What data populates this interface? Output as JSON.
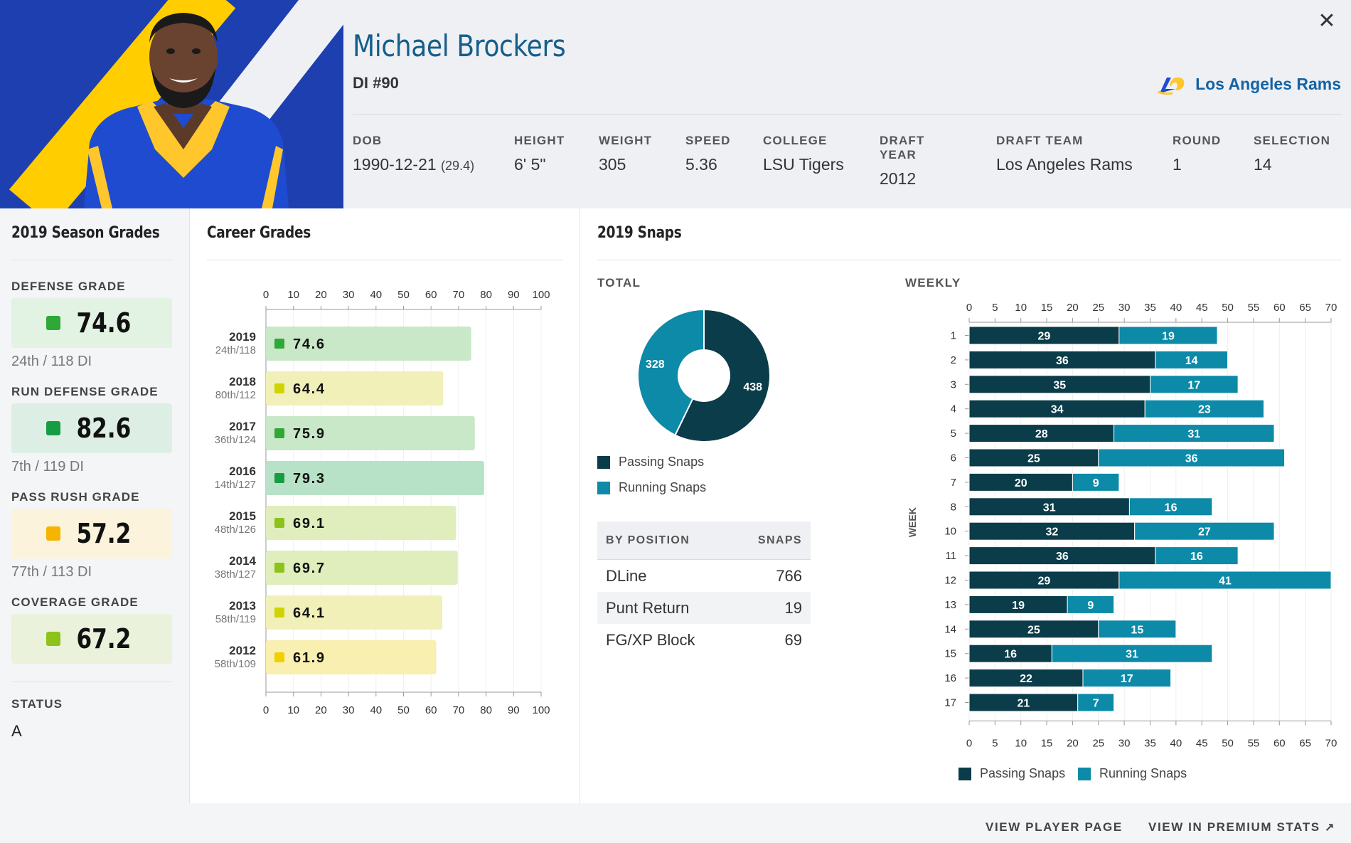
{
  "player": {
    "name": "Michael Brockers",
    "position": "DI #90",
    "team": "Los Angeles Rams"
  },
  "bio": [
    {
      "label": "DOB",
      "value": "1990-12-21",
      "extra": "(29.4)"
    },
    {
      "label": "HEIGHT",
      "value": "6' 5\""
    },
    {
      "label": "WEIGHT",
      "value": "305"
    },
    {
      "label": "SPEED",
      "value": "5.36"
    },
    {
      "label": "COLLEGE",
      "value": "LSU Tigers"
    },
    {
      "label": "DRAFT YEAR",
      "value": "2012"
    },
    {
      "label": "DRAFT TEAM",
      "value": "Los Angeles Rams"
    },
    {
      "label": "ROUND",
      "value": "1"
    },
    {
      "label": "SELECTION",
      "value": "14"
    }
  ],
  "season_grades": {
    "title": "2019 Season Grades",
    "grades": [
      {
        "label": "DEFENSE GRADE",
        "value": "74.6",
        "rank": "24th / 118 DI",
        "color": "#2ea836",
        "bg": "#e2f2e3"
      },
      {
        "label": "RUN DEFENSE GRADE",
        "value": "82.6",
        "rank": "7th / 119 DI",
        "color": "#169c43",
        "bg": "#ddefe4"
      },
      {
        "label": "PASS RUSH GRADE",
        "value": "57.2",
        "rank": "77th / 113 DI",
        "color": "#f6b400",
        "bg": "#fbf3dc"
      },
      {
        "label": "COVERAGE GRADE",
        "value": "67.2",
        "rank": "",
        "color": "#8cc21a",
        "bg": "#eaf2dc"
      }
    ],
    "status_label": "STATUS",
    "status_value": "A"
  },
  "career_grades": {
    "title": "Career Grades",
    "chart_data": {
      "type": "bar",
      "orientation": "horizontal",
      "xlim": [
        0,
        100
      ],
      "ticks": [
        0,
        10,
        20,
        30,
        40,
        50,
        60,
        70,
        80,
        90,
        100
      ],
      "rows": [
        {
          "year": "2019",
          "rank": "24th/118",
          "value": 74.6,
          "dot": "#2ea836",
          "bar": "#c8e8c7"
        },
        {
          "year": "2018",
          "rank": "80th/112",
          "value": 64.4,
          "dot": "#cfd400",
          "bar": "#f0f0b8"
        },
        {
          "year": "2017",
          "rank": "36th/124",
          "value": 75.9,
          "dot": "#2ea836",
          "bar": "#c8e8c7"
        },
        {
          "year": "2016",
          "rank": "14th/127",
          "value": 79.3,
          "dot": "#169c43",
          "bar": "#b8e2c8"
        },
        {
          "year": "2015",
          "rank": "48th/126",
          "value": 69.1,
          "dot": "#8cc21a",
          "bar": "#dfeebc"
        },
        {
          "year": "2014",
          "rank": "38th/127",
          "value": 69.7,
          "dot": "#8cc21a",
          "bar": "#dfeebc"
        },
        {
          "year": "2013",
          "rank": "58th/119",
          "value": 64.1,
          "dot": "#cfd400",
          "bar": "#f0f0b8"
        },
        {
          "year": "2012",
          "rank": "58th/109",
          "value": 61.9,
          "dot": "#f0d000",
          "bar": "#f8efb0"
        }
      ]
    }
  },
  "snaps": {
    "title": "2019 Snaps",
    "total_label": "TOTAL",
    "weekly_label": "WEEKLY",
    "colors": {
      "passing": "#0b3c49",
      "running": "#0c8aa8"
    },
    "legend": {
      "passing": "Passing Snaps",
      "running": "Running Snaps"
    },
    "donut": {
      "type": "pie",
      "slices": [
        {
          "name": "Passing Snaps",
          "value": 438
        },
        {
          "name": "Running Snaps",
          "value": 328
        }
      ]
    },
    "by_position": {
      "headers": [
        "BY POSITION",
        "SNAPS"
      ],
      "rows": [
        {
          "pos": "DLine",
          "snaps": "766"
        },
        {
          "pos": "Punt Return",
          "snaps": "19"
        },
        {
          "pos": "FG/XP Block",
          "snaps": "69"
        }
      ]
    },
    "weekly": {
      "type": "bar",
      "stacked": true,
      "orientation": "horizontal",
      "ylabel": "WEEK",
      "xlim": [
        0,
        70
      ],
      "ticks": [
        0,
        5,
        10,
        15,
        20,
        25,
        30,
        35,
        40,
        45,
        50,
        55,
        60,
        65,
        70
      ],
      "categories": [
        "1",
        "2",
        "3",
        "4",
        "5",
        "6",
        "7",
        "8",
        "10",
        "11",
        "12",
        "13",
        "14",
        "15",
        "16",
        "17"
      ],
      "series": [
        {
          "name": "Passing Snaps",
          "values": [
            29,
            36,
            35,
            34,
            28,
            25,
            20,
            31,
            32,
            36,
            29,
            19,
            25,
            16,
            22,
            21
          ]
        },
        {
          "name": "Running Snaps",
          "values": [
            19,
            14,
            17,
            23,
            31,
            36,
            9,
            16,
            27,
            16,
            41,
            9,
            15,
            31,
            17,
            7
          ]
        }
      ]
    }
  },
  "footer": {
    "view_player": "VIEW PLAYER PAGE",
    "view_premium": "VIEW IN PREMIUM STATS"
  }
}
